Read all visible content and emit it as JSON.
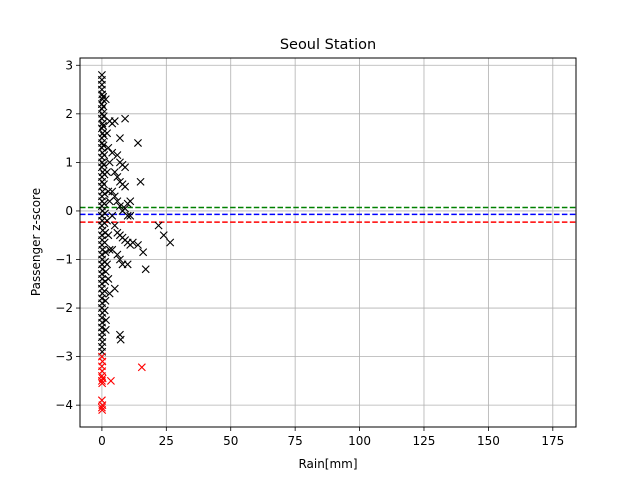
{
  "chart_data": {
    "type": "scatter",
    "title": "Seoul Station",
    "xlabel": "Rain[mm]",
    "ylabel": "Passenger z-score",
    "xlim": [
      -8.5,
      184
    ],
    "ylim": [
      -4.45,
      3.15
    ],
    "xticks": [
      0,
      25,
      50,
      75,
      100,
      125,
      150,
      175
    ],
    "yticks": [
      -4,
      -3,
      -2,
      -1,
      0,
      1,
      2,
      3
    ],
    "grid": true,
    "reference_lines": [
      {
        "y": 0.07,
        "color": "#008000",
        "style": "dashed"
      },
      {
        "y": -0.07,
        "color": "#0000ff",
        "style": "dashed"
      },
      {
        "y": -0.23,
        "color": "#ff0000",
        "style": "dashed"
      }
    ],
    "series": [
      {
        "color": "#000000",
        "marker": "x",
        "points": [
          [
            0,
            2.8
          ],
          [
            0,
            2.7
          ],
          [
            0,
            2.6
          ],
          [
            0,
            2.5
          ],
          [
            0.1,
            2.4
          ],
          [
            0.2,
            2.3
          ],
          [
            0,
            2.2
          ],
          [
            0,
            2.1
          ],
          [
            0.1,
            2.0
          ],
          [
            0,
            1.9
          ],
          [
            0.2,
            1.8
          ],
          [
            0,
            1.7
          ],
          [
            0.3,
            1.6
          ],
          [
            0,
            1.5
          ],
          [
            0.1,
            1.4
          ],
          [
            0,
            1.3
          ],
          [
            0.2,
            1.2
          ],
          [
            0,
            1.1
          ],
          [
            0.1,
            1.0
          ],
          [
            0,
            0.9
          ],
          [
            0.3,
            0.8
          ],
          [
            0,
            0.7
          ],
          [
            0.1,
            0.6
          ],
          [
            0,
            0.5
          ],
          [
            0.2,
            0.4
          ],
          [
            0,
            0.3
          ],
          [
            0.1,
            0.2
          ],
          [
            0,
            0.1
          ],
          [
            0.2,
            0.0
          ],
          [
            0,
            -0.1
          ],
          [
            0.1,
            -0.2
          ],
          [
            0,
            -0.3
          ],
          [
            0.3,
            -0.4
          ],
          [
            0,
            -0.5
          ],
          [
            0.1,
            -0.6
          ],
          [
            0,
            -0.7
          ],
          [
            0.2,
            -0.8
          ],
          [
            0,
            -0.9
          ],
          [
            0.1,
            -1.0
          ],
          [
            0,
            -1.1
          ],
          [
            0.2,
            -1.2
          ],
          [
            0,
            -1.3
          ],
          [
            0.1,
            -1.4
          ],
          [
            0,
            -1.5
          ],
          [
            0,
            -1.6
          ],
          [
            0.2,
            -1.7
          ],
          [
            0,
            -1.8
          ],
          [
            0.1,
            -1.9
          ],
          [
            0,
            -2.0
          ],
          [
            0.2,
            -2.1
          ],
          [
            0,
            -2.2
          ],
          [
            0.1,
            -2.3
          ],
          [
            0,
            -2.4
          ],
          [
            0.1,
            -2.5
          ],
          [
            0,
            -2.6
          ],
          [
            0.2,
            -2.7
          ],
          [
            0,
            -2.8
          ],
          [
            0.1,
            -2.9
          ],
          [
            0.5,
            2.35
          ],
          [
            0.6,
            2.15
          ],
          [
            0.7,
            1.95
          ],
          [
            0.5,
            1.75
          ],
          [
            0.8,
            1.55
          ],
          [
            0.6,
            1.35
          ],
          [
            0.9,
            1.15
          ],
          [
            0.7,
            0.95
          ],
          [
            1.0,
            0.75
          ],
          [
            0.8,
            0.55
          ],
          [
            1.1,
            0.35
          ],
          [
            0.9,
            0.15
          ],
          [
            1.2,
            -0.05
          ],
          [
            1.0,
            -0.25
          ],
          [
            1.3,
            -0.45
          ],
          [
            1.1,
            -0.65
          ],
          [
            1.4,
            -0.85
          ],
          [
            1.2,
            -1.05
          ],
          [
            1.5,
            -1.25
          ],
          [
            1.3,
            -1.45
          ],
          [
            1.0,
            -1.65
          ],
          [
            1.4,
            -1.85
          ],
          [
            1.1,
            -2.05
          ],
          [
            1.6,
            -2.25
          ],
          [
            1.5,
            -2.45
          ],
          [
            2,
            1.6
          ],
          [
            2.5,
            1.3
          ],
          [
            3,
            1.0
          ],
          [
            2,
            0.8
          ],
          [
            2.5,
            0.4
          ],
          [
            3,
            0.2
          ],
          [
            2,
            -0.2
          ],
          [
            2.5,
            -0.5
          ],
          [
            3,
            -0.8
          ],
          [
            2,
            -1.1
          ],
          [
            2.5,
            -1.4
          ],
          [
            3,
            -1.7
          ],
          [
            1.5,
            2.3
          ],
          [
            3,
            1.85
          ],
          [
            4,
            1.8
          ],
          [
            5,
            1.85
          ],
          [
            9,
            1.9
          ],
          [
            7,
            1.5
          ],
          [
            4,
            1.2
          ],
          [
            6,
            1.15
          ],
          [
            7,
            1.0
          ],
          [
            8,
            0.95
          ],
          [
            9,
            0.9
          ],
          [
            5,
            0.8
          ],
          [
            6,
            0.7
          ],
          [
            7,
            0.6
          ],
          [
            8,
            0.55
          ],
          [
            9,
            0.5
          ],
          [
            4,
            0.4
          ],
          [
            5,
            0.3
          ],
          [
            6,
            0.2
          ],
          [
            7,
            0.1
          ],
          [
            8,
            0.0
          ],
          [
            10,
            0.15
          ],
          [
            11,
            0.2
          ],
          [
            9,
            0.05
          ],
          [
            10,
            -0.1
          ],
          [
            11,
            -0.1
          ],
          [
            4,
            -0.1
          ],
          [
            5,
            -0.3
          ],
          [
            6,
            -0.45
          ],
          [
            7,
            -0.5
          ],
          [
            8,
            -0.55
          ],
          [
            9,
            -0.6
          ],
          [
            10,
            -0.65
          ],
          [
            11,
            -0.7
          ],
          [
            12,
            -0.65
          ],
          [
            4,
            -0.8
          ],
          [
            6,
            -0.9
          ],
          [
            7,
            -1.0
          ],
          [
            8,
            -1.1
          ],
          [
            10,
            -1.1
          ],
          [
            5,
            -1.6
          ],
          [
            14,
            1.4
          ],
          [
            15,
            0.6
          ],
          [
            14,
            -0.7
          ],
          [
            16,
            -0.85
          ],
          [
            17,
            -1.2
          ],
          [
            22,
            -0.3
          ],
          [
            24,
            -0.5
          ],
          [
            26.5,
            -0.65
          ],
          [
            7,
            -2.55
          ],
          [
            7.3,
            -2.65
          ]
        ]
      },
      {
        "color": "#ff0000",
        "marker": "x",
        "points": [
          [
            0,
            -3.0
          ],
          [
            0.2,
            -3.1
          ],
          [
            0,
            -3.2
          ],
          [
            0.1,
            -3.3
          ],
          [
            0,
            -3.4
          ],
          [
            0.3,
            -3.45
          ],
          [
            0,
            -3.5
          ],
          [
            0.1,
            -3.55
          ],
          [
            0,
            -3.9
          ],
          [
            0.2,
            -4.0
          ],
          [
            0,
            -4.05
          ],
          [
            0.1,
            -4.1
          ],
          [
            3.5,
            -3.5
          ],
          [
            15.5,
            -3.22
          ]
        ]
      }
    ]
  }
}
